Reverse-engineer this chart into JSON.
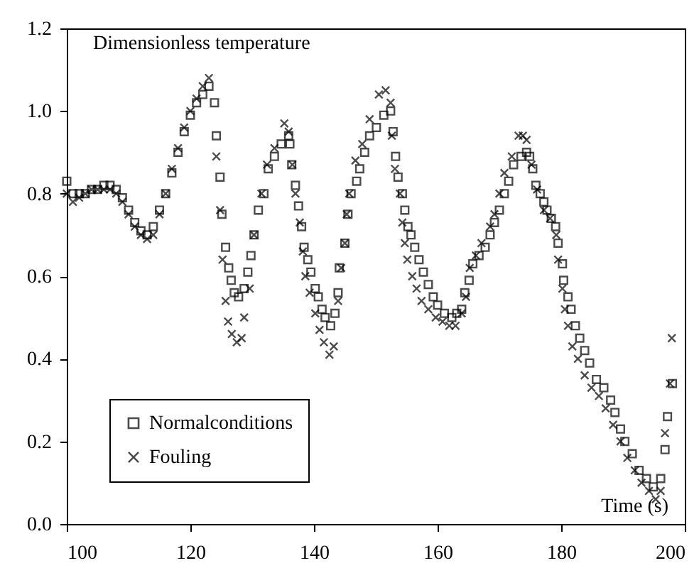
{
  "chart_data": {
    "type": "scatter",
    "xlabel": "Time (s)",
    "ylabel": "Dimensionless temperature",
    "xlim": [
      100,
      200
    ],
    "ylim": [
      0,
      1.2
    ],
    "xticks": [
      100,
      120,
      140,
      160,
      180,
      200
    ],
    "yticks": [
      {
        "value": 0,
        "label": "0.0"
      },
      {
        "value": 0.2,
        "label": "0.2"
      },
      {
        "value": 0.4,
        "label": "0.4"
      },
      {
        "value": 0.6,
        "label": "0.6"
      },
      {
        "value": 0.8,
        "label": "0.8"
      },
      {
        "value": 1,
        "label": "1.0"
      },
      {
        "value": 1.2,
        "label": "1.2"
      }
    ],
    "grid": false,
    "legend": "bottom left",
    "series": [
      {
        "name": "Normalconditions",
        "color": "#000000",
        "marker": "square",
        "x": [
          100,
          101,
          102,
          103,
          104,
          105,
          106,
          107,
          108,
          109,
          110,
          111,
          112,
          113,
          114,
          115,
          116,
          117,
          118,
          119,
          120,
          121,
          122,
          123,
          123.9,
          124.2,
          124.8,
          125.1,
          125.7,
          126.2,
          126.6,
          127.1,
          127.8,
          128.7,
          129.3,
          129.8,
          130.3,
          131,
          131.9,
          132.6,
          133.6,
          134.7,
          135.9,
          136.1,
          136.4,
          137,
          137.5,
          138,
          138.4,
          139,
          139.5,
          140.2,
          140.7,
          141.3,
          141.8,
          142.7,
          143.4,
          143.9,
          144.1,
          145,
          145.5,
          146,
          146.9,
          147.4,
          148.2,
          149,
          150.1,
          151.3,
          152.4,
          152.8,
          153.2,
          153.6,
          154.3,
          154.7,
          155.2,
          155.7,
          156.3,
          157,
          157.7,
          158.5,
          159.3,
          160,
          161.1,
          162.3,
          163.1,
          163.9,
          164.4,
          165.1,
          165.7,
          166.7,
          167.7,
          168.5,
          169.2,
          170,
          170.8,
          171.5,
          172.3,
          173.5,
          174.4,
          174.9,
          175.4,
          175.9,
          176.6,
          177.2,
          177.7,
          178.4,
          179.1,
          179.5,
          180.2,
          180.4,
          181.1,
          181.6,
          182.3,
          183,
          183.8,
          184.6,
          185.7,
          186.9,
          188,
          188.7,
          189.6,
          190.3,
          191.5,
          192.6,
          193.8,
          194.9,
          196.1,
          196.8,
          197.2,
          198
        ],
        "values": [
          0.83,
          0.8,
          0.8,
          0.8,
          0.81,
          0.81,
          0.82,
          0.82,
          0.81,
          0.79,
          0.76,
          0.73,
          0.71,
          0.7,
          0.72,
          0.76,
          0.8,
          0.85,
          0.9,
          0.95,
          0.99,
          1.02,
          1.04,
          1.06,
          1.02,
          0.94,
          0.84,
          0.75,
          0.67,
          0.62,
          0.59,
          0.56,
          0.55,
          0.57,
          0.61,
          0.65,
          0.7,
          0.76,
          0.8,
          0.86,
          0.89,
          0.92,
          0.94,
          0.92,
          0.87,
          0.82,
          0.77,
          0.72,
          0.67,
          0.64,
          0.61,
          0.57,
          0.55,
          0.52,
          0.5,
          0.48,
          0.51,
          0.56,
          0.62,
          0.68,
          0.75,
          0.8,
          0.83,
          0.86,
          0.9,
          0.94,
          0.96,
          0.99,
          1.0,
          0.95,
          0.89,
          0.84,
          0.8,
          0.76,
          0.72,
          0.7,
          0.67,
          0.64,
          0.61,
          0.58,
          0.55,
          0.53,
          0.51,
          0.5,
          0.51,
          0.52,
          0.56,
          0.59,
          0.63,
          0.65,
          0.67,
          0.7,
          0.73,
          0.76,
          0.8,
          0.83,
          0.87,
          0.89,
          0.9,
          0.89,
          0.86,
          0.82,
          0.8,
          0.78,
          0.76,
          0.74,
          0.72,
          0.68,
          0.63,
          0.59,
          0.55,
          0.52,
          0.48,
          0.45,
          0.42,
          0.39,
          0.35,
          0.33,
          0.3,
          0.27,
          0.23,
          0.2,
          0.17,
          0.13,
          0.11,
          0.09,
          0.11,
          0.18,
          0.26,
          0.34
        ]
      },
      {
        "name": "Fouling",
        "color": "#000000",
        "marker": "cross",
        "x": [
          100,
          101,
          102,
          103,
          104,
          105,
          106,
          107,
          108,
          109,
          110,
          111,
          112,
          113,
          114,
          115,
          116,
          117,
          118,
          119,
          120,
          121,
          122,
          123,
          124.2,
          124.8,
          125.2,
          125.7,
          126.1,
          126.7,
          127.5,
          128.3,
          128.7,
          129.6,
          130.3,
          131.5,
          132.4,
          133.6,
          135.2,
          135.9,
          136.5,
          137,
          137.7,
          138.2,
          138.6,
          139.3,
          140.2,
          140.9,
          141.6,
          142.5,
          143.2,
          143.9,
          144.4,
          145,
          145.3,
          145.7,
          146.7,
          147.8,
          149,
          150.5,
          151.6,
          152.4,
          152.6,
          153.1,
          153.9,
          154.3,
          154.7,
          155.1,
          155.9,
          156.6,
          157.4,
          158.5,
          159.7,
          160.8,
          161.9,
          162.9,
          163.9,
          164.6,
          165.2,
          166.2,
          167.1,
          168.5,
          169.2,
          170,
          170.8,
          172,
          173.1,
          173.8,
          174.4,
          175.2,
          176.1,
          177.2,
          178.2,
          179.2,
          179.5,
          180.2,
          180.6,
          181.1,
          181.8,
          182.7,
          183.8,
          184.9,
          186.1,
          187.2,
          188.4,
          189.6,
          190.7,
          191.9,
          193,
          194.2,
          195.3,
          196.1,
          196.8,
          197.6,
          197.9
        ],
        "values": [
          0.8,
          0.78,
          0.79,
          0.8,
          0.81,
          0.81,
          0.81,
          0.81,
          0.8,
          0.78,
          0.75,
          0.72,
          0.7,
          0.69,
          0.7,
          0.75,
          0.8,
          0.86,
          0.91,
          0.96,
          1.0,
          1.03,
          1.06,
          1.08,
          0.89,
          0.76,
          0.64,
          0.54,
          0.49,
          0.46,
          0.44,
          0.45,
          0.5,
          0.57,
          0.7,
          0.8,
          0.87,
          0.91,
          0.97,
          0.95,
          0.87,
          0.8,
          0.73,
          0.66,
          0.6,
          0.56,
          0.51,
          0.47,
          0.44,
          0.41,
          0.43,
          0.54,
          0.62,
          0.68,
          0.75,
          0.8,
          0.88,
          0.92,
          0.98,
          1.04,
          1.05,
          1.02,
          0.94,
          0.86,
          0.8,
          0.73,
          0.68,
          0.64,
          0.6,
          0.57,
          0.54,
          0.52,
          0.5,
          0.49,
          0.48,
          0.48,
          0.51,
          0.55,
          0.62,
          0.65,
          0.68,
          0.72,
          0.75,
          0.8,
          0.85,
          0.89,
          0.94,
          0.94,
          0.93,
          0.87,
          0.81,
          0.76,
          0.74,
          0.7,
          0.64,
          0.57,
          0.52,
          0.48,
          0.43,
          0.4,
          0.36,
          0.33,
          0.31,
          0.28,
          0.24,
          0.2,
          0.16,
          0.13,
          0.1,
          0.08,
          0.06,
          0.08,
          0.22,
          0.34,
          0.45
        ]
      }
    ]
  }
}
